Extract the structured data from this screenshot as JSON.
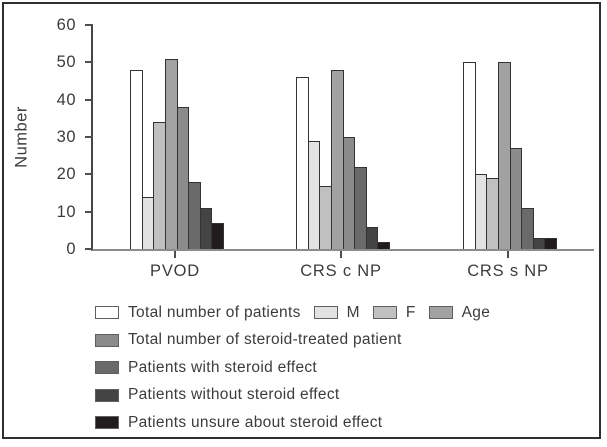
{
  "figure": {
    "background": "#ffffff",
    "border_color": "#2f2f2f"
  },
  "chart_data": {
    "type": "bar",
    "title": "",
    "xlabel": "",
    "ylabel": "Number",
    "ylim": [
      0,
      60
    ],
    "yticks": [
      0,
      10,
      20,
      30,
      40,
      50,
      60
    ],
    "grid": false,
    "legend_position": "bottom",
    "categories": [
      "PVOD",
      "CRS c NP",
      "CRS s NP"
    ],
    "series": [
      {
        "name": "Total number of patients",
        "color": "#ffffff",
        "values": [
          48,
          46,
          50
        ]
      },
      {
        "name": "M",
        "color": "#e2e2e2",
        "values": [
          14,
          29,
          20
        ]
      },
      {
        "name": "F",
        "color": "#c0c0c0",
        "values": [
          34,
          17,
          19
        ]
      },
      {
        "name": "Age",
        "color": "#a2a2a2",
        "values": [
          51,
          48,
          50
        ]
      },
      {
        "name": "Total number of steroid-treated patient",
        "color": "#8b8b8b",
        "values": [
          38,
          30,
          27
        ]
      },
      {
        "name": "Patients with steroid effect",
        "color": "#6a6a6a",
        "values": [
          18,
          22,
          11
        ]
      },
      {
        "name": "Patients without steroid effect",
        "color": "#444444",
        "values": [
          11,
          6,
          3
        ]
      },
      {
        "name": "Patients unsure about steroid effect",
        "color": "#201c1d",
        "values": [
          7,
          2,
          3
        ]
      }
    ],
    "legend_rows": [
      [
        0,
        1,
        2,
        3
      ],
      [
        4
      ],
      [
        5
      ],
      [
        6
      ],
      [
        7
      ]
    ]
  }
}
